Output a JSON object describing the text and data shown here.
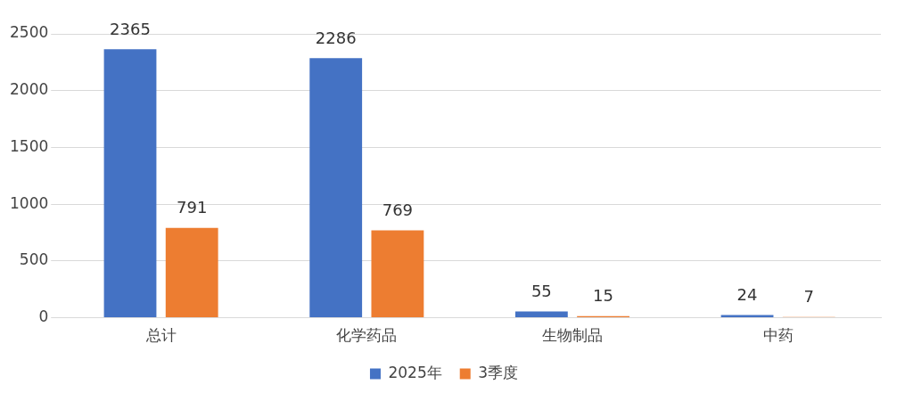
{
  "chart_data": {
    "type": "bar",
    "categories": [
      "总计",
      "化学药品",
      "生物制品",
      "中药"
    ],
    "series": [
      {
        "name": "2025年",
        "color": "#4472c4",
        "values": [
          2365,
          2286,
          55,
          24
        ]
      },
      {
        "name": "3季度",
        "color": "#ed7d31",
        "values": [
          791,
          769,
          15,
          7
        ]
      }
    ],
    "ylim": [
      0,
      2500
    ],
    "yticks": [
      0,
      500,
      1000,
      1500,
      2000,
      2500
    ],
    "grid": "y",
    "legend": "bottom",
    "data_labels": true
  }
}
